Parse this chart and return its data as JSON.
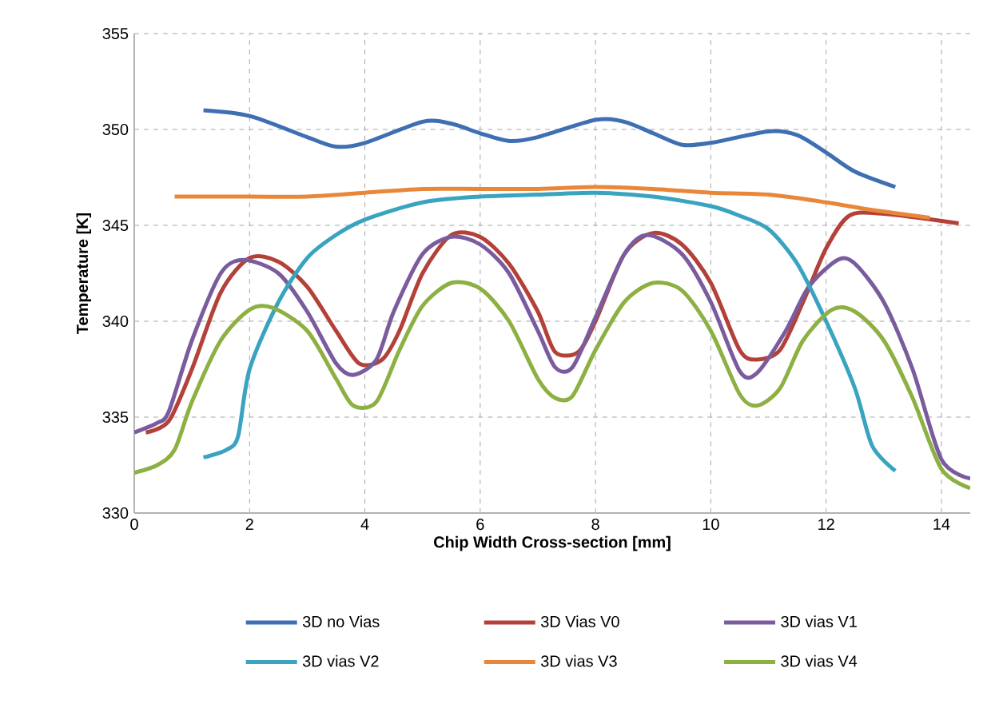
{
  "chart_data": {
    "type": "line",
    "xlabel": "Chip Width Cross-section [mm]",
    "ylabel": "Temperature [K]",
    "xlim": [
      0,
      14.5
    ],
    "ylim": [
      330,
      355
    ],
    "xticks": [
      0,
      2,
      4,
      6,
      8,
      10,
      12,
      14
    ],
    "yticks": [
      330,
      335,
      340,
      345,
      350,
      355
    ],
    "grid": true,
    "legend": "bottom",
    "marker": "none",
    "line_style": "solid",
    "series": [
      {
        "name": "3D no Vias",
        "color": "#3f6fb3",
        "x": [
          1.2,
          2,
          3,
          3.5,
          4,
          5,
          5.5,
          6,
          6.5,
          7,
          8,
          8.5,
          9,
          9.5,
          10,
          11,
          11.5,
          12,
          12.5,
          13.2
        ],
        "values": [
          351,
          350.7,
          349.6,
          349.1,
          349.3,
          350.4,
          350.3,
          349.8,
          349.4,
          349.6,
          350.5,
          350.4,
          349.8,
          349.2,
          349.3,
          349.9,
          349.7,
          348.8,
          347.8,
          347.0
        ]
      },
      {
        "name": "3D Vias V0",
        "color": "#b3413a",
        "x": [
          0.2,
          0.6,
          1,
          1.5,
          2,
          2.5,
          3,
          3.5,
          3.9,
          4.3,
          4.6,
          5,
          5.5,
          6,
          6.5,
          7,
          7.3,
          7.7,
          8,
          8.5,
          9,
          9.5,
          10,
          10.5,
          10.8,
          11.2,
          11.6,
          12,
          12.4,
          13,
          14.3
        ],
        "values": [
          334.2,
          334.8,
          337.5,
          341.5,
          343.3,
          343.1,
          341.8,
          339.5,
          337.8,
          338.0,
          339.5,
          342.5,
          344.5,
          344.4,
          343,
          340.5,
          338.4,
          338.4,
          340,
          343.5,
          344.6,
          344,
          342,
          338.5,
          338.0,
          338.5,
          341,
          343.8,
          345.5,
          345.6,
          345.1
        ]
      },
      {
        "name": "3D vias V1",
        "color": "#7a5c9e",
        "x": [
          0,
          0.4,
          0.6,
          1,
          1.5,
          1.9,
          2.5,
          3,
          3.5,
          3.8,
          4.2,
          4.5,
          5,
          5.5,
          6,
          6.5,
          7,
          7.3,
          7.6,
          8,
          8.5,
          8.9,
          9.5,
          10,
          10.5,
          10.8,
          11.3,
          11.7,
          12.2,
          12.5,
          13,
          13.5,
          14,
          14.5
        ],
        "values": [
          334.2,
          334.7,
          335.3,
          339,
          342.5,
          343.2,
          342.5,
          340.5,
          337.8,
          337.2,
          338,
          340.5,
          343.5,
          344.4,
          344,
          342.5,
          339.5,
          337.6,
          337.6,
          340.2,
          343.5,
          344.5,
          343.5,
          341,
          337.4,
          337.3,
          339.5,
          341.8,
          343.2,
          343.0,
          341,
          337.5,
          332.8,
          331.8
        ]
      },
      {
        "name": "3D vias V2",
        "color": "#39a3c0",
        "x": [
          1.2,
          1.6,
          1.8,
          2,
          2.5,
          3,
          3.5,
          4,
          5,
          6,
          7,
          8,
          9,
          10,
          10.5,
          11,
          11.5,
          12,
          12.5,
          12.8,
          13.2
        ],
        "values": [
          332.9,
          333.3,
          334,
          337.5,
          341,
          343.3,
          344.5,
          345.3,
          346.2,
          346.5,
          346.6,
          346.7,
          346.5,
          346.0,
          345.5,
          344.8,
          343,
          340,
          336.5,
          333.5,
          332.2
        ]
      },
      {
        "name": "3D vias V3",
        "color": "#e8873a",
        "x": [
          0.7,
          2,
          3,
          4,
          5,
          6,
          7,
          8,
          9,
          10,
          11,
          12,
          12.8,
          13.8
        ],
        "values": [
          346.5,
          346.5,
          346.5,
          346.7,
          346.9,
          346.9,
          346.9,
          347.0,
          346.9,
          346.7,
          346.6,
          346.2,
          345.8,
          345.4
        ]
      },
      {
        "name": "3D vias V4",
        "color": "#8db043",
        "x": [
          0,
          0.4,
          0.7,
          1,
          1.5,
          2,
          2.4,
          3,
          3.5,
          3.8,
          4.2,
          4.6,
          5,
          5.5,
          6,
          6.5,
          7,
          7.3,
          7.6,
          8,
          8.5,
          9,
          9.5,
          10,
          10.5,
          10.8,
          11.2,
          11.6,
          12.1,
          12.5,
          13,
          13.5,
          14,
          14.5
        ],
        "values": [
          332.1,
          332.5,
          333.3,
          335.8,
          339,
          340.6,
          340.7,
          339.5,
          337,
          335.6,
          335.8,
          338.5,
          340.8,
          342,
          341.7,
          340,
          337,
          336,
          336.1,
          338.5,
          341,
          342,
          341.6,
          339.5,
          336.2,
          335.6,
          336.5,
          339,
          340.6,
          340.5,
          339,
          336,
          332.3,
          331.3
        ]
      }
    ]
  }
}
